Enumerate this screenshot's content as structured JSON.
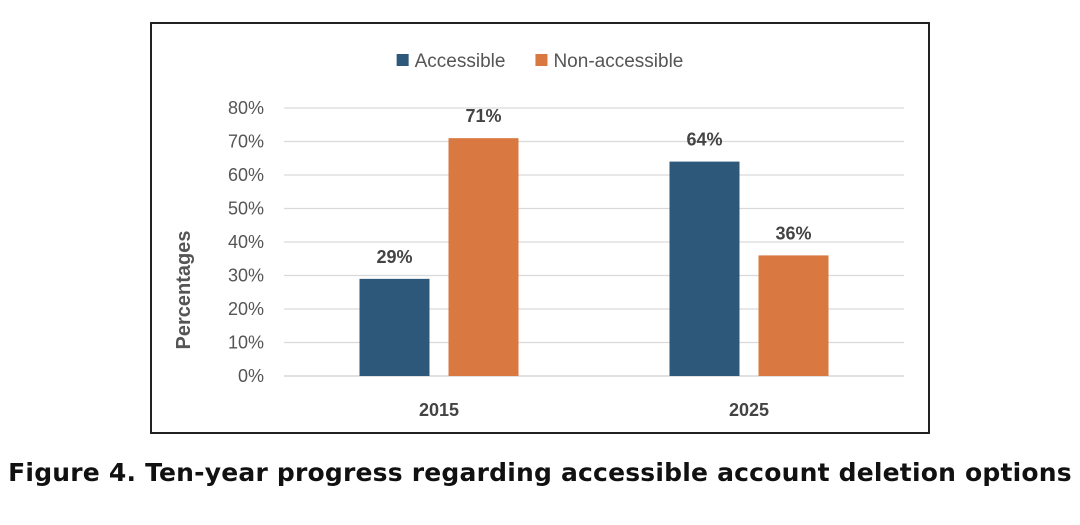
{
  "chart_data": {
    "type": "bar",
    "title": "",
    "xlabel": "",
    "ylabel": "Percentages",
    "categories": [
      "2015",
      "2025"
    ],
    "series": [
      {
        "name": "Accessible",
        "values": [
          29,
          64
        ],
        "color": "#2e5879"
      },
      {
        "name": "Non-accessible",
        "values": [
          71,
          36
        ],
        "color": "#d97941"
      }
    ],
    "data_labels": [
      [
        "29%",
        "64%"
      ],
      [
        "71%",
        "36%"
      ]
    ],
    "ylim": [
      0,
      80
    ],
    "yticks": [
      0,
      10,
      20,
      30,
      40,
      50,
      60,
      70,
      80
    ],
    "ytick_labels": [
      "0%",
      "10%",
      "20%",
      "30%",
      "40%",
      "50%",
      "60%",
      "70%",
      "80%"
    ],
    "grid": true,
    "legend_position": "top-center"
  },
  "caption": "Figure 4. Ten-year progress regarding accessible account deletion options"
}
